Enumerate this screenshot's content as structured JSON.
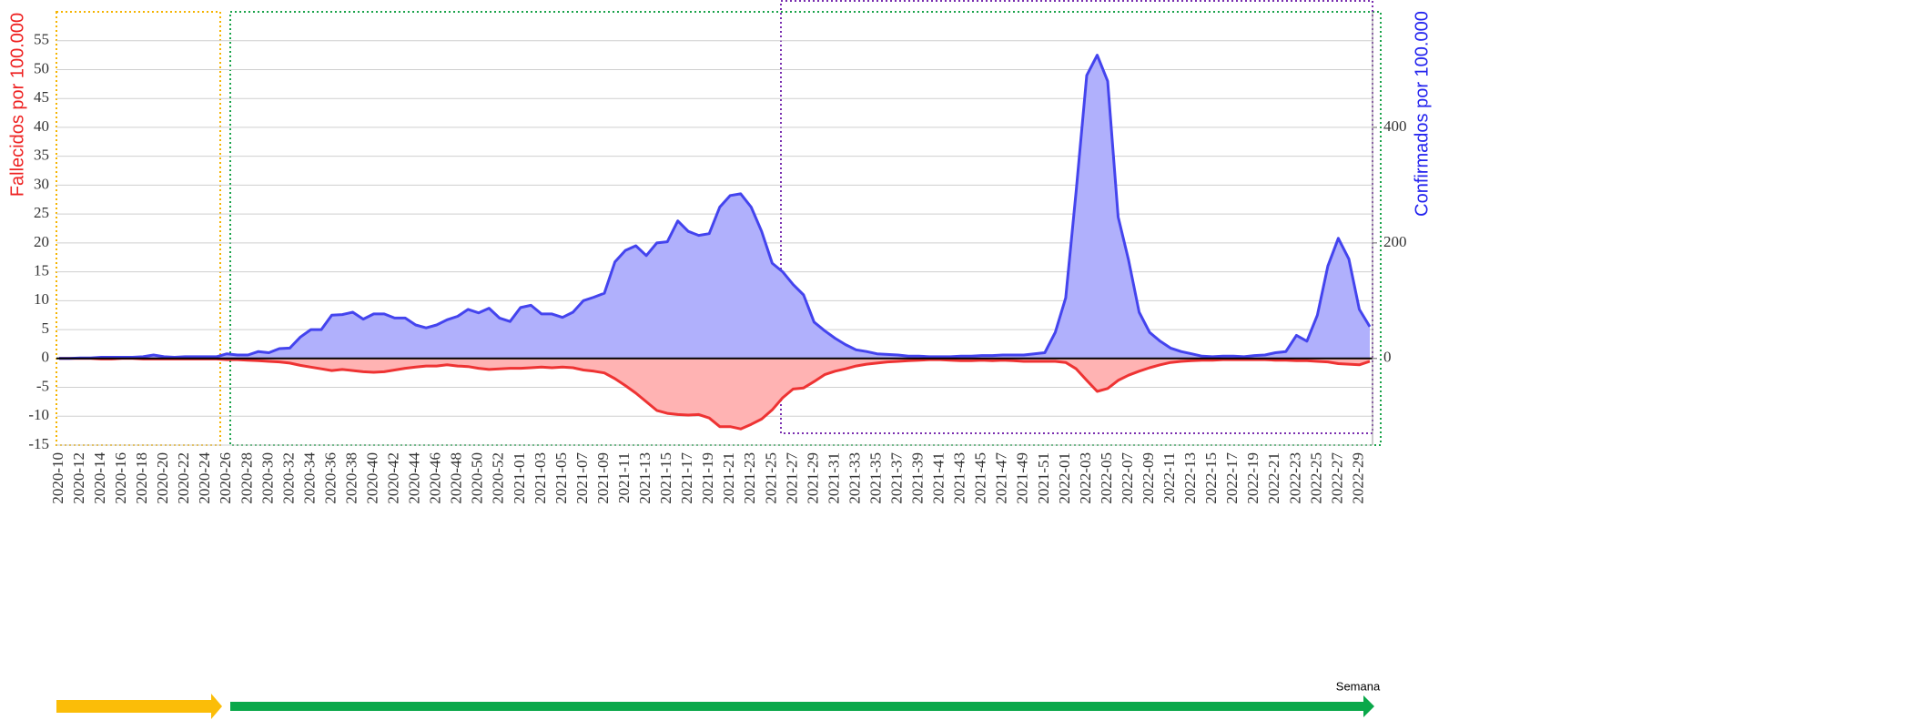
{
  "chart_data": {
    "type": "area",
    "x_label": "Semana",
    "y_label": "Fallecidos por 100.000",
    "y2_label": "Confirmados por 100.000",
    "categories": [
      "2020-10",
      null,
      "2020-12",
      null,
      "2020-14",
      null,
      "2020-16",
      null,
      "2020-18",
      null,
      "2020-20",
      null,
      "2020-22",
      null,
      "2020-24",
      null,
      "2020-26",
      null,
      "2020-28",
      null,
      "2020-30",
      null,
      "2020-32",
      null,
      "2020-34",
      null,
      "2020-36",
      null,
      "2020-38",
      null,
      "2020-40",
      null,
      "2020-42",
      null,
      "2020-44",
      null,
      "2020-46",
      null,
      "2020-48",
      null,
      "2020-50",
      null,
      "2020-52",
      null,
      "2021-01",
      null,
      "2021-03",
      null,
      "2021-05",
      null,
      "2021-07",
      null,
      "2021-09",
      null,
      "2021-11",
      null,
      "2021-13",
      null,
      "2021-15",
      null,
      "2021-17",
      null,
      "2021-19",
      null,
      "2021-21",
      null,
      "2021-23",
      null,
      "2021-25",
      null,
      "2021-27",
      null,
      "2021-29",
      null,
      "2021-31",
      null,
      "2021-33",
      null,
      "2021-35",
      null,
      "2021-37",
      null,
      "2021-39",
      null,
      "2021-41",
      null,
      "2021-43",
      null,
      "2021-45",
      null,
      "2021-47",
      null,
      "2021-49",
      null,
      "2021-51",
      null,
      "2022-01",
      null,
      "2022-03",
      null,
      "2022-05",
      null,
      "2022-07",
      null,
      "2022-09",
      null,
      "2022-11",
      null,
      "2022-13",
      null,
      "2022-15",
      null,
      "2022-17",
      null,
      "2022-19",
      null,
      "2022-21",
      null,
      "2022-23",
      null,
      "2022-25",
      null,
      "2022-27",
      null,
      "2022-29",
      null
    ],
    "series": [
      {
        "name": "Fallecidos por 100.000",
        "color": "#ee3333",
        "fill": "#ffb3b3",
        "axis": "y",
        "values": [
          0,
          0,
          0,
          0,
          -0.1,
          -0.1,
          0,
          0,
          -0.1,
          -0.1,
          -0.1,
          -0.1,
          -0.1,
          -0.1,
          -0.1,
          -0.1,
          -0.2,
          -0.2,
          -0.3,
          -0.4,
          -0.5,
          -0.6,
          -0.8,
          -1.2,
          -1.5,
          -1.8,
          -2.1,
          -1.9,
          -2.1,
          -2.3,
          -2.4,
          -2.3,
          -2.0,
          -1.7,
          -1.5,
          -1.3,
          -1.3,
          -1.1,
          -1.3,
          -1.4,
          -1.7,
          -1.9,
          -1.8,
          -1.7,
          -1.7,
          -1.6,
          -1.5,
          -1.6,
          -1.5,
          -1.6,
          -2.0,
          -2.2,
          -2.5,
          -3.5,
          -4.7,
          -6.0,
          -7.5,
          -9.0,
          -9.5,
          -9.7,
          -9.8,
          -9.7,
          -10.3,
          -11.8,
          -11.8,
          -12.2,
          -11.4,
          -10.5,
          -8.9,
          -6.8,
          -5.3,
          -5.1,
          -4.0,
          -2.8,
          -2.2,
          -1.8,
          -1.3,
          -1.0,
          -0.8,
          -0.6,
          -0.5,
          -0.4,
          -0.3,
          -0.2,
          -0.2,
          -0.3,
          -0.4,
          -0.4,
          -0.3,
          -0.4,
          -0.3,
          -0.4,
          -0.5,
          -0.5,
          -0.5,
          -0.5,
          -0.7,
          -1.8,
          -3.8,
          -5.7,
          -5.2,
          -3.8,
          -2.9,
          -2.2,
          -1.6,
          -1.1,
          -0.7,
          -0.5,
          -0.4,
          -0.3,
          -0.3,
          -0.2,
          -0.2,
          -0.2,
          -0.2,
          -0.2,
          -0.3,
          -0.3,
          -0.4,
          -0.4,
          -0.5,
          -0.6,
          -0.9,
          -1.0,
          -1.1,
          -0.5
        ]
      },
      {
        "name": "Confirmados por 100.000",
        "color": "#4444ee",
        "fill": "#b0b0fc",
        "axis": "y2",
        "values": [
          0,
          0,
          1,
          1,
          2,
          2,
          2,
          2,
          3,
          6,
          3,
          2,
          3,
          3,
          3,
          3,
          8,
          6,
          6,
          12,
          10,
          17,
          18,
          37,
          50,
          50,
          75,
          76,
          80,
          68,
          77,
          77,
          70,
          70,
          58,
          53,
          58,
          67,
          73,
          85,
          79,
          87,
          70,
          64,
          88,
          92,
          77,
          77,
          71,
          80,
          100,
          106,
          113,
          167,
          187,
          195,
          178,
          200,
          202,
          238,
          220,
          213,
          216,
          262,
          282,
          285,
          262,
          220,
          165,
          150,
          128,
          110,
          63,
          48,
          35,
          24,
          15,
          12,
          8,
          7,
          6,
          4,
          4,
          3,
          3,
          3,
          4,
          4,
          5,
          5,
          6,
          6,
          6,
          8,
          10,
          45,
          105,
          290,
          490,
          525,
          480,
          245,
          170,
          80,
          45,
          30,
          18,
          12,
          8,
          4,
          3,
          4,
          4,
          3,
          5,
          6,
          10,
          12,
          40,
          30,
          75,
          160,
          208,
          172,
          85,
          55
        ]
      }
    ],
    "ylim": [
      -15,
      60
    ],
    "yticks": [
      -15,
      -10,
      -5,
      0,
      5,
      10,
      15,
      20,
      25,
      30,
      35,
      40,
      45,
      50,
      55
    ],
    "y2lim": [
      -150,
      600
    ],
    "y2ticks": [
      0,
      200,
      400
    ],
    "grid": true
  }
}
